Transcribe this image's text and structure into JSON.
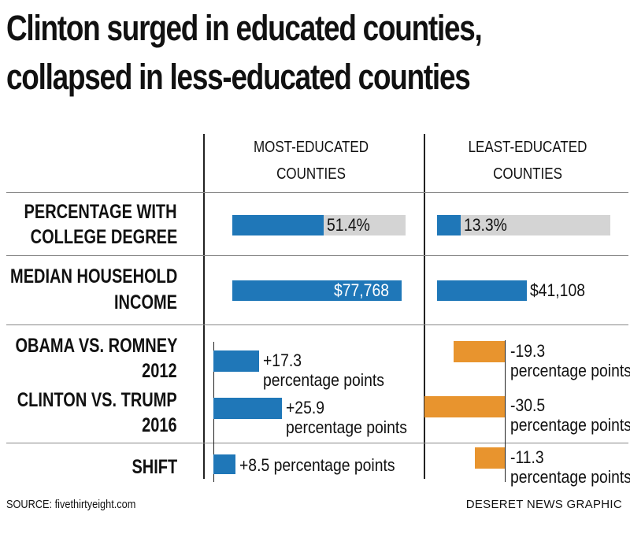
{
  "title_line1": "Clinton surged in educated counties,",
  "title_line2": "collapsed in less-educated counties",
  "columns": {
    "most_line1": "MOST-EDUCATED",
    "most_line2": "COUNTIES",
    "least_line1": "LEAST-EDUCATED",
    "least_line2": "COUNTIES"
  },
  "rows": {
    "college_line1": "PERCENTAGE WITH",
    "college_line2": "COLLEGE DEGREE",
    "income_line1": "MEDIAN HOUSEHOLD",
    "income_line2": "INCOME",
    "obama_line1": "OBAMA VS. ROMNEY",
    "obama_line2": "2012",
    "clinton_line1": "CLINTON VS. TRUMP",
    "clinton_line2": "2016",
    "shift": "SHIFT"
  },
  "chart_data": {
    "type": "bar",
    "college_degree": {
      "unit": "%",
      "most": 51.4,
      "least": 13.3,
      "most_label": "51.4%",
      "least_label": "13.3%"
    },
    "median_income": {
      "unit": "$",
      "most": 77768,
      "least": 41108,
      "most_label": "$77,768",
      "least_label": "$41,108"
    },
    "margins": {
      "obama_2012": {
        "most": 17.3,
        "least": -19.3,
        "most_label": "+17.3",
        "least_label": "-19.3"
      },
      "clinton_2016": {
        "most": 25.9,
        "least": -30.5,
        "most_label": "+25.9",
        "least_label": "-30.5"
      },
      "shift": {
        "most": 8.5,
        "least": -11.3,
        "most_label": "+8.5 percentage points",
        "least_label": "-11.3"
      }
    },
    "points_suffix": "percentage points"
  },
  "footer": {
    "source": "SOURCE: fivethirtyeight.com",
    "credit": "DESERET NEWS GRAPHIC"
  },
  "colors": {
    "blue": "#1f77b8",
    "grey": "#d4d4d4",
    "orange": "#e8942e"
  }
}
